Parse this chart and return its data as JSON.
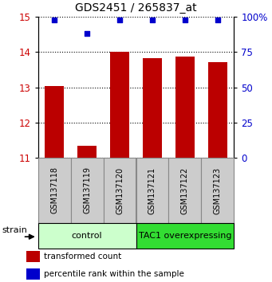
{
  "title": "GDS2451 / 265837_at",
  "samples": [
    "GSM137118",
    "GSM137119",
    "GSM137120",
    "GSM137121",
    "GSM137122",
    "GSM137123"
  ],
  "red_values": [
    13.05,
    11.35,
    14.02,
    13.82,
    13.87,
    13.72
  ],
  "blue_values": [
    98,
    88,
    98,
    98,
    98,
    98
  ],
  "ylim_left": [
    11,
    15
  ],
  "ylim_right": [
    0,
    100
  ],
  "yticks_left": [
    11,
    12,
    13,
    14,
    15
  ],
  "yticks_right": [
    0,
    25,
    50,
    75,
    100
  ],
  "ytick_labels_right": [
    "0",
    "25",
    "50",
    "75",
    "100%"
  ],
  "groups": [
    {
      "label": "control",
      "start": 0,
      "end": 3,
      "color": "#ccffcc"
    },
    {
      "label": "TAC1 overexpressing",
      "start": 3,
      "end": 6,
      "color": "#33dd33"
    }
  ],
  "bar_color": "#bb0000",
  "dot_color": "#0000cc",
  "bar_width": 0.6,
  "legend_red": "transformed count",
  "legend_blue": "percentile rank within the sample",
  "strain_label": "strain",
  "background_color": "#ffffff",
  "tick_label_color_left": "#cc0000",
  "tick_label_color_right": "#0000cc",
  "sample_box_color": "#cccccc",
  "sample_box_edge": "#888888"
}
